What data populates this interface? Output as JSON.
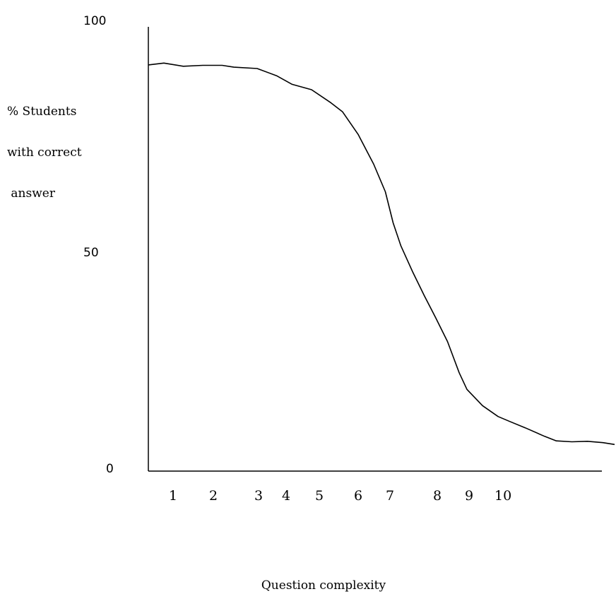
{
  "chart_data": {
    "type": "line",
    "title": "",
    "xlabel": "Question complexity",
    "ylabel_lines": [
      "% Students",
      "with correct",
      " answer"
    ],
    "y_ticks": [
      "100",
      "50",
      "0"
    ],
    "x_ticks": [
      "1",
      "2",
      "3",
      "4",
      "5",
      "6",
      "7",
      "8",
      "9",
      "10"
    ],
    "ylim": [
      0,
      100
    ],
    "grid": false,
    "line_color": "#000000",
    "series": [
      {
        "points": [
          [
            0.0,
            90.0
          ],
          [
            0.4,
            90.4
          ],
          [
            0.9,
            89.7
          ],
          [
            1.4,
            89.9
          ],
          [
            1.9,
            89.9
          ],
          [
            2.2,
            89.5
          ],
          [
            2.8,
            89.2
          ],
          [
            3.3,
            87.6
          ],
          [
            3.7,
            85.7
          ],
          [
            4.2,
            84.5
          ],
          [
            4.7,
            81.6
          ],
          [
            5.0,
            79.6
          ],
          [
            5.4,
            74.6
          ],
          [
            5.8,
            68.0
          ],
          [
            6.1,
            61.9
          ],
          [
            6.3,
            55.0
          ],
          [
            6.5,
            49.9
          ],
          [
            6.8,
            44.2
          ],
          [
            7.1,
            38.9
          ],
          [
            7.4,
            33.9
          ],
          [
            7.7,
            28.7
          ],
          [
            8.0,
            21.8
          ],
          [
            8.2,
            18.1
          ],
          [
            8.6,
            14.5
          ],
          [
            9.0,
            12.1
          ],
          [
            9.3,
            11.0
          ],
          [
            9.7,
            9.6
          ],
          [
            10.2,
            7.7
          ],
          [
            10.5,
            6.7
          ],
          [
            10.9,
            6.5
          ],
          [
            11.3,
            6.6
          ],
          [
            11.7,
            6.3
          ],
          [
            12.0,
            5.9
          ]
        ]
      }
    ]
  }
}
